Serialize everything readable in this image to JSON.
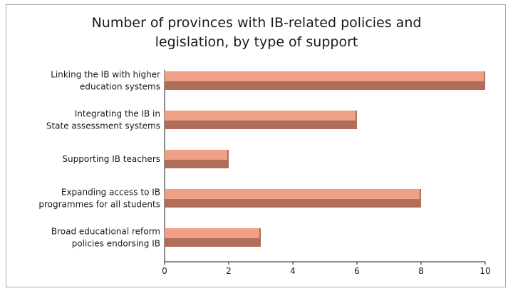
{
  "chart_data": {
    "type": "bar",
    "orientation": "horizontal",
    "title_lines": [
      "Number of provinces with IB-related policies and",
      "legislation, by type of support"
    ],
    "categories": [
      [
        "Linking the IB with higher",
        "education systems"
      ],
      [
        "Integrating the IB in",
        "State assessment systems"
      ],
      [
        "Supporting IB teachers"
      ],
      [
        "Expanding access to IB",
        "programmes for all students"
      ],
      [
        "Broad educational reform",
        "policies endorsing IB"
      ]
    ],
    "values": [
      10,
      6,
      2,
      8,
      3
    ],
    "xlim": [
      0,
      10
    ],
    "xticks": [
      0,
      2,
      4,
      6,
      8,
      10
    ],
    "grid": false,
    "bar_color": "#f0a086",
    "bar_shadow_color": "#b06e5a"
  }
}
